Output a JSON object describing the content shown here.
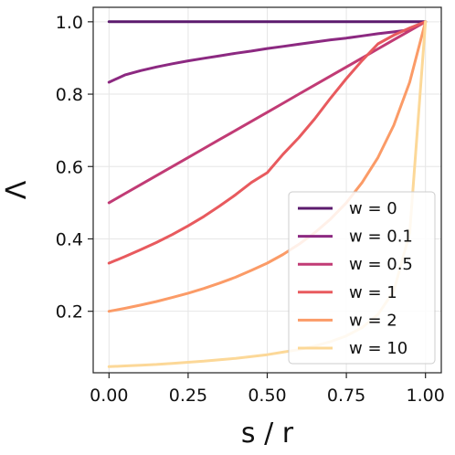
{
  "chart_data": {
    "type": "line",
    "xlabel": "s / r",
    "ylabel": "Λ",
    "xlim": [
      -0.05,
      1.05
    ],
    "ylim": [
      0.03,
      1.04
    ],
    "xticks": [
      0.0,
      0.25,
      0.5,
      0.75,
      1.0
    ],
    "xtick_labels": [
      "0.00",
      "0.25",
      "0.50",
      "0.75",
      "1.00"
    ],
    "yticks": [
      0.2,
      0.4,
      0.6,
      0.8,
      1.0
    ],
    "ytick_labels": [
      "0.2",
      "0.4",
      "0.6",
      "0.8",
      "1.0"
    ],
    "grid": true,
    "legend_position": "lower-right",
    "x": [
      0.0,
      0.05,
      0.1,
      0.15,
      0.2,
      0.25,
      0.3,
      0.35,
      0.4,
      0.45,
      0.5,
      0.55,
      0.6,
      0.65,
      0.7,
      0.75,
      0.8,
      0.85,
      0.9,
      0.95,
      1.0
    ],
    "series": [
      {
        "name": "w = 0",
        "color": "#5c1b6e",
        "values": [
          1.0,
          1.0,
          1.0,
          1.0,
          1.0,
          1.0,
          1.0,
          1.0,
          1.0,
          1.0,
          1.0,
          1.0,
          1.0,
          1.0,
          1.0,
          1.0,
          1.0,
          1.0,
          1.0,
          1.0,
          1.0
        ]
      },
      {
        "name": "w = 0.1",
        "color": "#8c2981",
        "values": [
          0.833,
          0.853,
          0.865,
          0.875,
          0.884,
          0.892,
          0.899,
          0.906,
          0.913,
          0.919,
          0.926,
          0.932,
          0.938,
          0.944,
          0.95,
          0.955,
          0.961,
          0.967,
          0.972,
          0.978,
          1.0
        ]
      },
      {
        "name": "w = 0.5",
        "color": "#c13b75",
        "values": [
          0.5,
          0.525,
          0.55,
          0.575,
          0.6,
          0.625,
          0.65,
          0.675,
          0.7,
          0.725,
          0.75,
          0.775,
          0.8,
          0.825,
          0.85,
          0.875,
          0.9,
          0.925,
          0.95,
          0.975,
          1.0
        ]
      },
      {
        "name": "w = 1",
        "color": "#e85a5e",
        "values": [
          0.333,
          0.351,
          0.37,
          0.39,
          0.412,
          0.436,
          0.462,
          0.491,
          0.522,
          0.556,
          0.583,
          0.634,
          0.68,
          0.732,
          0.789,
          0.843,
          0.893,
          0.939,
          0.963,
          0.983,
          1.0
        ]
      },
      {
        "name": "w = 2",
        "color": "#fb9b67",
        "values": [
          0.2,
          0.208,
          0.217,
          0.227,
          0.238,
          0.25,
          0.263,
          0.278,
          0.294,
          0.313,
          0.333,
          0.357,
          0.385,
          0.417,
          0.455,
          0.5,
          0.556,
          0.625,
          0.714,
          0.833,
          1.0
        ]
      },
      {
        "name": "w = 10",
        "color": "#fcd898",
        "values": [
          0.047,
          0.049,
          0.051,
          0.053,
          0.056,
          0.059,
          0.062,
          0.066,
          0.07,
          0.075,
          0.08,
          0.087,
          0.094,
          0.104,
          0.116,
          0.132,
          0.155,
          0.191,
          0.256,
          0.416,
          1.0
        ]
      }
    ]
  }
}
